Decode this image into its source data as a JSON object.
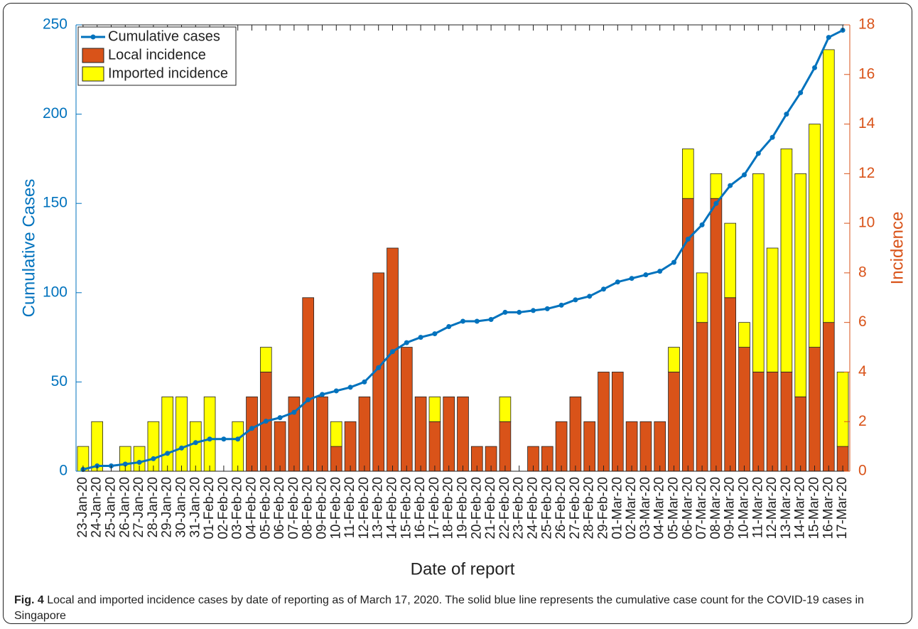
{
  "chart_data": {
    "type": "bar-line",
    "categories": [
      "23-Jan-20",
      "24-Jan-20",
      "25-Jan-20",
      "26-Jan-20",
      "27-Jan-20",
      "28-Jan-20",
      "29-Jan-20",
      "30-Jan-20",
      "31-Jan-20",
      "01-Feb-20",
      "02-Feb-20",
      "03-Feb-20",
      "04-Feb-20",
      "05-Feb-20",
      "06-Feb-20",
      "07-Feb-20",
      "08-Feb-20",
      "09-Feb-20",
      "10-Feb-20",
      "11-Feb-20",
      "12-Feb-20",
      "13-Feb-20",
      "14-Feb-20",
      "15-Feb-20",
      "16-Feb-20",
      "17-Feb-20",
      "18-Feb-20",
      "19-Feb-20",
      "20-Feb-20",
      "21-Feb-20",
      "22-Feb-20",
      "23-Feb-20",
      "24-Feb-20",
      "25-Feb-20",
      "26-Feb-20",
      "27-Feb-20",
      "28-Feb-20",
      "29-Feb-20",
      "01-Mar-20",
      "02-Mar-20",
      "03-Mar-20",
      "04-Mar-20",
      "05-Mar-20",
      "06-Mar-20",
      "07-Mar-20",
      "08-Mar-20",
      "09-Mar-20",
      "10-Mar-20",
      "11-Mar-20",
      "12-Mar-20",
      "13-Mar-20",
      "14-Mar-20",
      "15-Mar-20",
      "16-Mar-20",
      "17-Mar-20"
    ],
    "series": [
      {
        "name": "Cumulative cases",
        "color": "#0072bd",
        "axis": "y",
        "values": [
          1,
          3,
          3,
          4,
          5,
          7,
          10,
          13,
          16,
          18,
          18,
          18,
          24,
          28,
          30,
          33,
          40,
          43,
          45,
          47,
          50,
          58,
          67,
          72,
          75,
          77,
          81,
          84,
          84,
          85,
          89,
          89,
          90,
          91,
          93,
          96,
          98,
          102,
          106,
          108,
          110,
          112,
          117,
          130,
          138,
          150,
          160,
          166,
          178,
          187,
          200,
          212,
          226,
          243,
          247
        ]
      },
      {
        "name": "Local incidence",
        "color": "#d95319",
        "axis": "y2",
        "values": [
          0,
          0,
          0,
          0,
          0,
          0,
          0,
          0,
          0,
          0,
          0,
          0,
          3,
          4,
          2,
          3,
          7,
          3,
          1,
          2,
          3,
          8,
          9,
          5,
          3,
          2,
          3,
          3,
          1,
          1,
          2,
          0,
          1,
          1,
          2,
          3,
          2,
          4,
          4,
          2,
          2,
          2,
          4,
          11,
          6,
          11,
          7,
          5,
          4,
          4,
          4,
          3,
          5,
          6,
          1
        ]
      },
      {
        "name": "Imported incidence",
        "color": "#ffff00",
        "axis": "y2",
        "values": [
          1,
          2,
          0,
          1,
          1,
          2,
          3,
          3,
          2,
          3,
          0,
          2,
          0,
          1,
          0,
          0,
          0,
          0,
          1,
          0,
          0,
          0,
          0,
          0,
          0,
          1,
          0,
          0,
          0,
          0,
          1,
          0,
          0,
          0,
          0,
          0,
          0,
          0,
          0,
          0,
          0,
          0,
          1,
          2,
          2,
          1,
          3,
          1,
          8,
          5,
          9,
          9,
          9,
          11,
          3
        ]
      }
    ],
    "ylabel": "Cumulative Cases",
    "y2label": "Incidence",
    "xlabel": "Date of report",
    "ylim": [
      0,
      250
    ],
    "yticks": [
      0,
      50,
      100,
      150,
      200,
      250
    ],
    "y2lim": [
      0,
      18
    ],
    "y2ticks": [
      0,
      2,
      4,
      6,
      8,
      10,
      12,
      14,
      16,
      18
    ],
    "legend": "upper-left",
    "caption_label": "Fig. 4",
    "caption": "Local and imported incidence cases by date of reporting as of March 17, 2020. The solid blue line represents the cumulative case count for the COVID-19 cases in Singapore"
  }
}
